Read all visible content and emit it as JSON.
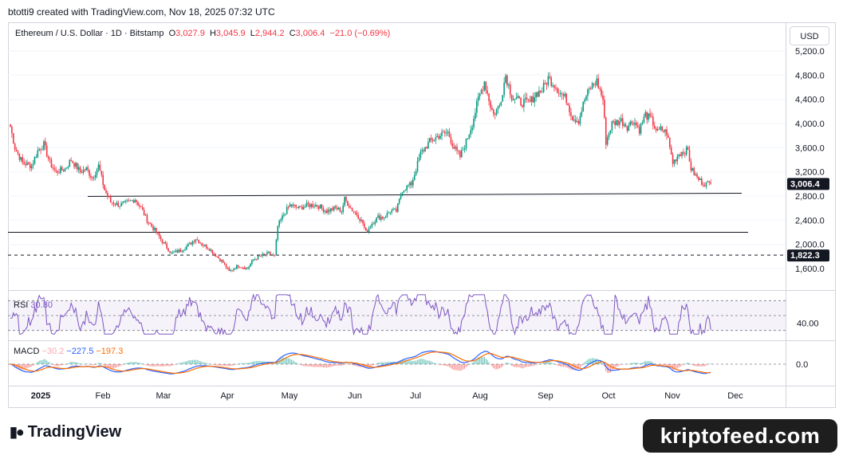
{
  "header": {
    "text": "btotti9 created with TradingView.com, Nov 18, 2025 07:32 UTC"
  },
  "legend": {
    "symbol": "Ethereum / U.S. Dollar · 1D · Bitstamp",
    "open_label": "O",
    "open": "3,027.9",
    "high_label": "H",
    "high": "3,045.9",
    "low_label": "L",
    "low": "2,944.2",
    "close_label": "C",
    "close": "3,006.4",
    "change": "−21.0 (−0.69%)"
  },
  "currency_button": "USD",
  "colors": {
    "up": "#089981",
    "down": "#f23645",
    "rsi": "#7e57c2",
    "macd": "#2962ff",
    "signal": "#ff6d00"
  },
  "chart_data": {
    "type": "candlestick",
    "price_axis": {
      "ticks": [
        "5,200.0",
        "4,800.0",
        "4,400.0",
        "4,000.0",
        "3,600.0",
        "3,200.0",
        "2,800.0",
        "2,400.0",
        "2,000.0",
        "1,600.0"
      ],
      "range": [
        1300,
        5300
      ]
    },
    "last_price_label": "3,006.4",
    "support_price_label": "1,822.3",
    "time_axis": [
      "2025",
      "Feb",
      "Mar",
      "Apr",
      "May",
      "Jun",
      "Jul",
      "Aug",
      "Sep",
      "Oct",
      "Nov",
      "Dec"
    ],
    "path": [
      [
        0,
        3950
      ],
      [
        3,
        3600
      ],
      [
        8,
        3350
      ],
      [
        14,
        3300
      ],
      [
        18,
        3550
      ],
      [
        22,
        3650
      ],
      [
        26,
        3350
      ],
      [
        30,
        3200
      ],
      [
        36,
        3250
      ],
      [
        40,
        3400
      ],
      [
        46,
        3200
      ],
      [
        50,
        3250
      ],
      [
        54,
        3100
      ],
      [
        58,
        3300
      ],
      [
        62,
        2900
      ],
      [
        66,
        2700
      ],
      [
        72,
        2650
      ],
      [
        78,
        2700
      ],
      [
        82,
        2750
      ],
      [
        86,
        2600
      ],
      [
        90,
        2400
      ],
      [
        96,
        2200
      ],
      [
        100,
        2050
      ],
      [
        106,
        1850
      ],
      [
        112,
        1900
      ],
      [
        118,
        2000
      ],
      [
        122,
        2100
      ],
      [
        126,
        2000
      ],
      [
        130,
        1950
      ],
      [
        136,
        1800
      ],
      [
        140,
        1700
      ],
      [
        144,
        1550
      ],
      [
        150,
        1650
      ],
      [
        156,
        1600
      ],
      [
        160,
        1750
      ],
      [
        164,
        1800
      ],
      [
        170,
        1850
      ],
      [
        174,
        1800
      ],
      [
        176,
        2300
      ],
      [
        180,
        2500
      ],
      [
        184,
        2650
      ],
      [
        190,
        2600
      ],
      [
        196,
        2650
      ],
      [
        202,
        2650
      ],
      [
        208,
        2550
      ],
      [
        214,
        2600
      ],
      [
        218,
        2550
      ],
      [
        220,
        2750
      ],
      [
        224,
        2600
      ],
      [
        228,
        2500
      ],
      [
        232,
        2350
      ],
      [
        234,
        2200
      ],
      [
        238,
        2350
      ],
      [
        242,
        2450
      ],
      [
        246,
        2450
      ],
      [
        250,
        2550
      ],
      [
        254,
        2550
      ],
      [
        258,
        2900
      ],
      [
        264,
        3000
      ],
      [
        270,
        3500
      ],
      [
        276,
        3700
      ],
      [
        282,
        3800
      ],
      [
        288,
        3850
      ],
      [
        292,
        3600
      ],
      [
        296,
        3450
      ],
      [
        300,
        3700
      ],
      [
        304,
        4000
      ],
      [
        308,
        4400
      ],
      [
        312,
        4700
      ],
      [
        316,
        4300
      ],
      [
        318,
        4150
      ],
      [
        322,
        4300
      ],
      [
        326,
        4800
      ],
      [
        330,
        4450
      ],
      [
        336,
        4350
      ],
      [
        342,
        4350
      ],
      [
        346,
        4500
      ],
      [
        350,
        4550
      ],
      [
        354,
        4750
      ],
      [
        358,
        4650
      ],
      [
        362,
        4500
      ],
      [
        366,
        4400
      ],
      [
        370,
        4100
      ],
      [
        374,
        4050
      ],
      [
        378,
        4400
      ],
      [
        382,
        4600
      ],
      [
        386,
        4700
      ],
      [
        390,
        4400
      ],
      [
        392,
        3700
      ],
      [
        396,
        4000
      ],
      [
        402,
        4050
      ],
      [
        406,
        3950
      ],
      [
        410,
        4050
      ],
      [
        414,
        3900
      ],
      [
        418,
        4150
      ],
      [
        422,
        4050
      ],
      [
        426,
        3850
      ],
      [
        428,
        3900
      ],
      [
        432,
        3850
      ],
      [
        434,
        3600
      ],
      [
        436,
        3350
      ],
      [
        440,
        3500
      ],
      [
        444,
        3550
      ],
      [
        446,
        3550
      ],
      [
        448,
        3250
      ],
      [
        452,
        3100
      ],
      [
        456,
        3006
      ]
    ],
    "horizontal_lines": [
      2820,
      2200,
      1822
    ],
    "rsi": {
      "label": "RSI",
      "value": "30.80",
      "axis_tick": "40.00",
      "range": [
        20,
        80
      ],
      "levels": [
        30,
        50,
        70
      ]
    },
    "macd": {
      "label": "MACD",
      "histogram": "−30.2",
      "macd": "−227.5",
      "signal": "−197.3",
      "axis_tick": "0.0"
    }
  },
  "footer": {
    "brand": "TradingView",
    "watermark": "kriptofeed.com"
  }
}
